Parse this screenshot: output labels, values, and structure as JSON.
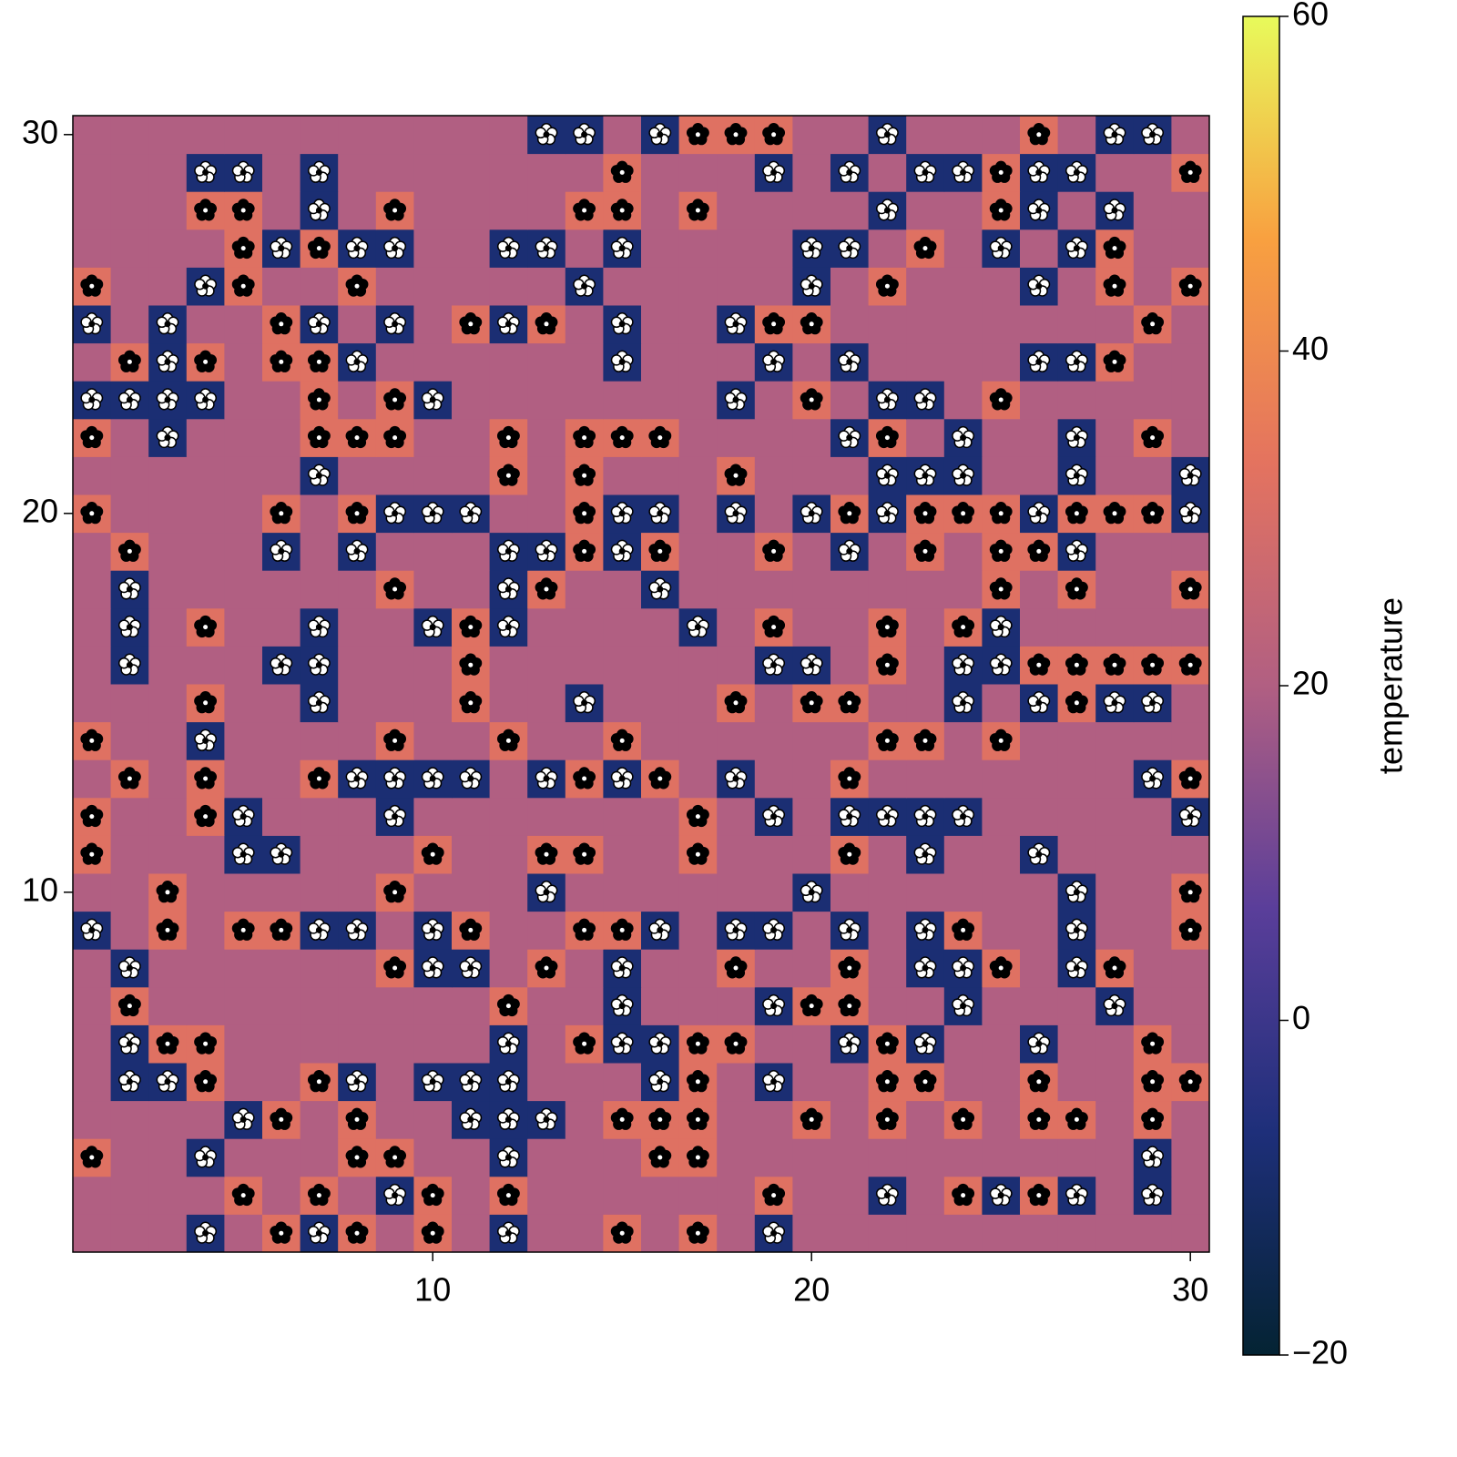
{
  "chart_data": {
    "type": "heatmap",
    "x": [
      1,
      2,
      3,
      4,
      5,
      6,
      7,
      8,
      9,
      10,
      11,
      12,
      13,
      14,
      15,
      16,
      17,
      18,
      19,
      20,
      21,
      22,
      23,
      24,
      25,
      26,
      27,
      28,
      29,
      30
    ],
    "y": [
      1,
      2,
      3,
      4,
      5,
      6,
      7,
      8,
      9,
      10,
      11,
      12,
      13,
      14,
      15,
      16,
      17,
      18,
      19,
      20,
      21,
      22,
      23,
      24,
      25,
      26,
      27,
      28,
      29,
      30
    ],
    "z": [
      [
        20,
        20,
        20,
        -8,
        20,
        32,
        -8,
        32,
        20,
        32,
        20,
        -8,
        20,
        20,
        32,
        20,
        32,
        20,
        -8,
        20,
        20,
        20,
        20,
        20,
        20,
        20,
        20,
        20,
        20,
        20
      ],
      [
        20,
        20,
        20,
        20,
        32,
        20,
        32,
        20,
        -8,
        32,
        20,
        32,
        20,
        20,
        20,
        20,
        20,
        20,
        32,
        20,
        20,
        -8,
        20,
        32,
        -8,
        32,
        -8,
        20,
        -8,
        20
      ],
      [
        32,
        20,
        20,
        -8,
        20,
        20,
        20,
        32,
        32,
        20,
        20,
        -8,
        20,
        20,
        20,
        32,
        32,
        20,
        20,
        20,
        20,
        20,
        20,
        20,
        20,
        20,
        20,
        20,
        -8,
        20
      ],
      [
        20,
        20,
        20,
        20,
        -8,
        32,
        20,
        32,
        20,
        20,
        -8,
        -8,
        -8,
        20,
        32,
        32,
        32,
        20,
        20,
        32,
        20,
        32,
        20,
        32,
        20,
        32,
        32,
        20,
        32,
        20
      ],
      [
        20,
        -8,
        -8,
        32,
        20,
        20,
        32,
        -8,
        20,
        -8,
        -8,
        -8,
        20,
        20,
        20,
        -8,
        32,
        20,
        -8,
        20,
        20,
        32,
        32,
        20,
        20,
        32,
        20,
        20,
        32,
        32
      ],
      [
        20,
        -8,
        32,
        32,
        20,
        20,
        20,
        20,
        20,
        20,
        20,
        -8,
        20,
        32,
        -8,
        -8,
        32,
        32,
        20,
        20,
        -8,
        32,
        -8,
        20,
        20,
        -8,
        20,
        20,
        32,
        20
      ],
      [
        20,
        32,
        20,
        20,
        20,
        20,
        20,
        20,
        20,
        20,
        20,
        32,
        20,
        20,
        -8,
        20,
        20,
        20,
        -8,
        32,
        32,
        20,
        20,
        -8,
        20,
        20,
        20,
        -8,
        20,
        20
      ],
      [
        20,
        -8,
        20,
        20,
        20,
        20,
        20,
        20,
        32,
        -8,
        -8,
        20,
        32,
        20,
        -8,
        20,
        20,
        32,
        20,
        20,
        32,
        20,
        -8,
        -8,
        32,
        20,
        -8,
        32,
        20,
        20
      ],
      [
        -8,
        20,
        32,
        20,
        32,
        32,
        -8,
        -8,
        20,
        -8,
        32,
        20,
        20,
        32,
        32,
        -8,
        20,
        -8,
        -8,
        20,
        -8,
        20,
        -8,
        32,
        20,
        20,
        -8,
        20,
        20,
        32
      ],
      [
        20,
        20,
        32,
        20,
        20,
        20,
        20,
        20,
        32,
        20,
        20,
        20,
        -8,
        20,
        20,
        20,
        20,
        20,
        20,
        -8,
        20,
        20,
        20,
        20,
        20,
        20,
        -8,
        20,
        20,
        32
      ],
      [
        32,
        20,
        20,
        20,
        -8,
        -8,
        20,
        20,
        20,
        32,
        20,
        20,
        32,
        32,
        20,
        20,
        32,
        20,
        20,
        20,
        32,
        20,
        -8,
        20,
        20,
        -8,
        20,
        20,
        20,
        20
      ],
      [
        32,
        20,
        20,
        32,
        -8,
        20,
        20,
        20,
        -8,
        20,
        20,
        20,
        20,
        20,
        20,
        20,
        32,
        20,
        -8,
        20,
        -8,
        -8,
        -8,
        -8,
        20,
        20,
        20,
        20,
        20,
        -8
      ],
      [
        20,
        32,
        20,
        32,
        20,
        20,
        32,
        -8,
        -8,
        -8,
        -8,
        20,
        -8,
        32,
        -8,
        32,
        20,
        -8,
        20,
        20,
        32,
        20,
        20,
        20,
        20,
        20,
        20,
        20,
        -8,
        32
      ],
      [
        32,
        20,
        20,
        -8,
        20,
        20,
        20,
        20,
        32,
        20,
        20,
        32,
        20,
        20,
        32,
        20,
        20,
        20,
        20,
        20,
        20,
        32,
        32,
        20,
        32,
        20,
        20,
        20,
        20,
        20
      ],
      [
        20,
        20,
        20,
        32,
        20,
        20,
        -8,
        20,
        20,
        20,
        32,
        20,
        20,
        -8,
        20,
        20,
        20,
        32,
        20,
        32,
        32,
        20,
        20,
        -8,
        20,
        -8,
        32,
        -8,
        -8,
        20
      ],
      [
        20,
        -8,
        20,
        20,
        20,
        -8,
        -8,
        20,
        20,
        20,
        32,
        20,
        20,
        20,
        20,
        20,
        20,
        20,
        -8,
        -8,
        20,
        32,
        20,
        -8,
        -8,
        32,
        32,
        32,
        32,
        32
      ],
      [
        20,
        -8,
        20,
        32,
        20,
        20,
        -8,
        20,
        20,
        -8,
        32,
        -8,
        20,
        20,
        20,
        20,
        -8,
        20,
        32,
        20,
        20,
        32,
        20,
        32,
        -8,
        20,
        20,
        20,
        20,
        20
      ],
      [
        20,
        -8,
        20,
        20,
        20,
        20,
        20,
        20,
        32,
        20,
        20,
        -8,
        32,
        20,
        20,
        -8,
        20,
        20,
        20,
        20,
        20,
        20,
        20,
        20,
        32,
        20,
        32,
        20,
        20,
        32
      ],
      [
        20,
        32,
        20,
        20,
        20,
        -8,
        20,
        -8,
        20,
        20,
        20,
        -8,
        -8,
        32,
        -8,
        32,
        20,
        20,
        32,
        20,
        -8,
        20,
        32,
        20,
        32,
        32,
        -8,
        20,
        20,
        20
      ],
      [
        32,
        20,
        20,
        20,
        20,
        32,
        20,
        32,
        -8,
        -8,
        -8,
        20,
        20,
        32,
        -8,
        -8,
        20,
        -8,
        20,
        -8,
        32,
        -8,
        32,
        32,
        32,
        -8,
        32,
        32,
        32,
        -8
      ],
      [
        20,
        20,
        20,
        20,
        20,
        20,
        -8,
        20,
        20,
        20,
        20,
        32,
        20,
        32,
        20,
        20,
        20,
        32,
        20,
        20,
        20,
        -8,
        -8,
        -8,
        20,
        20,
        -8,
        20,
        20,
        -8
      ],
      [
        32,
        20,
        -8,
        20,
        20,
        20,
        32,
        32,
        32,
        20,
        20,
        32,
        20,
        32,
        32,
        32,
        20,
        20,
        20,
        20,
        -8,
        32,
        20,
        -8,
        20,
        20,
        -8,
        20,
        32,
        20
      ],
      [
        -8,
        -8,
        -8,
        -8,
        20,
        20,
        32,
        20,
        32,
        -8,
        20,
        20,
        20,
        20,
        20,
        20,
        20,
        -8,
        20,
        32,
        20,
        -8,
        -8,
        20,
        32,
        20,
        20,
        20,
        20,
        20
      ],
      [
        20,
        32,
        -8,
        32,
        20,
        32,
        32,
        -8,
        20,
        20,
        20,
        20,
        20,
        20,
        -8,
        20,
        20,
        20,
        -8,
        20,
        -8,
        20,
        20,
        20,
        20,
        -8,
        -8,
        32,
        20,
        20
      ],
      [
        -8,
        20,
        -8,
        20,
        20,
        32,
        -8,
        20,
        -8,
        20,
        32,
        -8,
        32,
        20,
        -8,
        20,
        20,
        -8,
        32,
        32,
        20,
        20,
        20,
        20,
        20,
        20,
        20,
        20,
        32,
        20
      ],
      [
        32,
        20,
        20,
        -8,
        32,
        20,
        20,
        32,
        20,
        20,
        20,
        20,
        20,
        -8,
        20,
        20,
        20,
        20,
        20,
        -8,
        20,
        32,
        20,
        20,
        20,
        -8,
        20,
        32,
        20,
        32
      ],
      [
        20,
        20,
        20,
        20,
        32,
        -8,
        32,
        -8,
        -8,
        20,
        20,
        -8,
        -8,
        20,
        -8,
        20,
        20,
        20,
        20,
        -8,
        -8,
        20,
        32,
        20,
        -8,
        20,
        -8,
        32,
        20,
        20
      ],
      [
        20,
        20,
        20,
        32,
        32,
        20,
        -8,
        20,
        32,
        20,
        20,
        20,
        20,
        32,
        32,
        20,
        32,
        20,
        20,
        20,
        20,
        -8,
        20,
        20,
        32,
        -8,
        20,
        -8,
        20,
        20
      ],
      [
        20,
        20,
        20,
        -8,
        -8,
        20,
        -8,
        20,
        20,
        20,
        20,
        20,
        20,
        20,
        32,
        20,
        20,
        20,
        -8,
        20,
        -8,
        20,
        -8,
        -8,
        32,
        -8,
        -8,
        20,
        20,
        32
      ],
      [
        20,
        20,
        20,
        20,
        20,
        20,
        20,
        20,
        20,
        20,
        20,
        20,
        -8,
        -8,
        20,
        -8,
        32,
        32,
        32,
        20,
        20,
        -8,
        20,
        20,
        20,
        32,
        20,
        -8,
        -8,
        20
      ]
    ],
    "xlim": [
      0.5,
      30.5
    ],
    "ylim": [
      0.5,
      30.5
    ],
    "xticks": [
      10,
      20,
      30
    ],
    "yticks": [
      10,
      20,
      30
    ],
    "colorbar": {
      "label": "temperature",
      "lim": [
        -20,
        60
      ],
      "ticks": [
        {
          "value": -20,
          "label": "−20"
        },
        0,
        20,
        40,
        60
      ]
    },
    "colormap": [
      "#042333",
      "#1e2f7a",
      "#5a3e9a",
      "#b15f82",
      "#e4735f",
      "#f8a040",
      "#e8fa5b"
    ]
  }
}
